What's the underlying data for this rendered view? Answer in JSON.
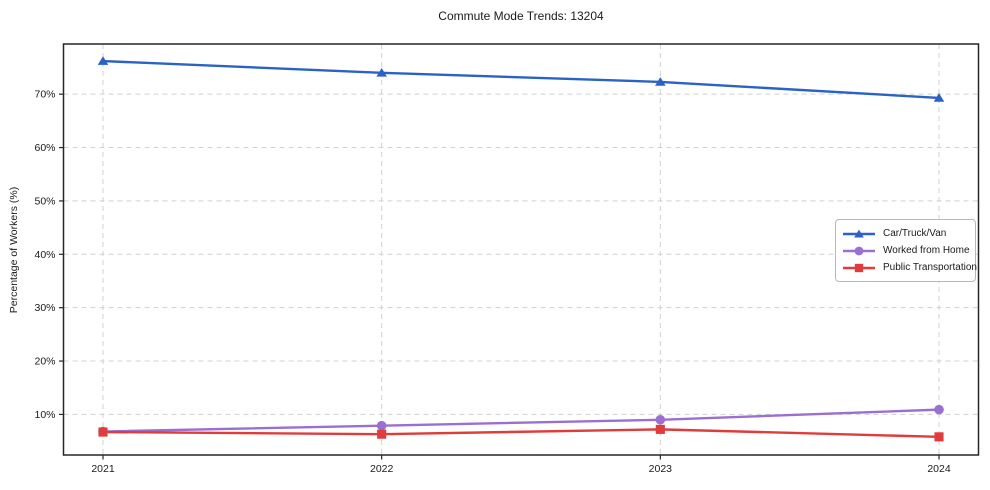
{
  "chart_data": {
    "type": "line",
    "title": "Commute Mode Trends: 13204",
    "xlabel": "",
    "ylabel": "Percentage of Workers (%)",
    "categories": [
      "2021",
      "2022",
      "2023",
      "2024"
    ],
    "series": [
      {
        "name": "Car/Truck/Van",
        "color": "#2a62c6",
        "marker": "triangle",
        "values": [
          76.2,
          74.0,
          72.3,
          69.3
        ]
      },
      {
        "name": "Worked from Home",
        "color": "#9b6fd2",
        "marker": "circle",
        "values": [
          6.8,
          7.9,
          9.0,
          10.9
        ]
      },
      {
        "name": "Public Transportation",
        "color": "#e03c3c",
        "marker": "square",
        "values": [
          6.7,
          6.3,
          7.2,
          5.8
        ]
      }
    ],
    "y_ticks": [
      {
        "value": 10,
        "label": "10%"
      },
      {
        "value": 20,
        "label": "20%"
      },
      {
        "value": 30,
        "label": "30%"
      },
      {
        "value": 40,
        "label": "40%"
      },
      {
        "value": 50,
        "label": "50%"
      },
      {
        "value": 60,
        "label": "60%"
      },
      {
        "value": 70,
        "label": "70%"
      }
    ],
    "ylim": [
      2.4,
      79.4
    ],
    "grid": true,
    "grid_style": "dashed",
    "legend_position": "right-middle",
    "colors": {
      "grid": "#d0d0d0",
      "spine": "#262626",
      "text": "#1a1a1a",
      "background": "#ffffff"
    }
  }
}
